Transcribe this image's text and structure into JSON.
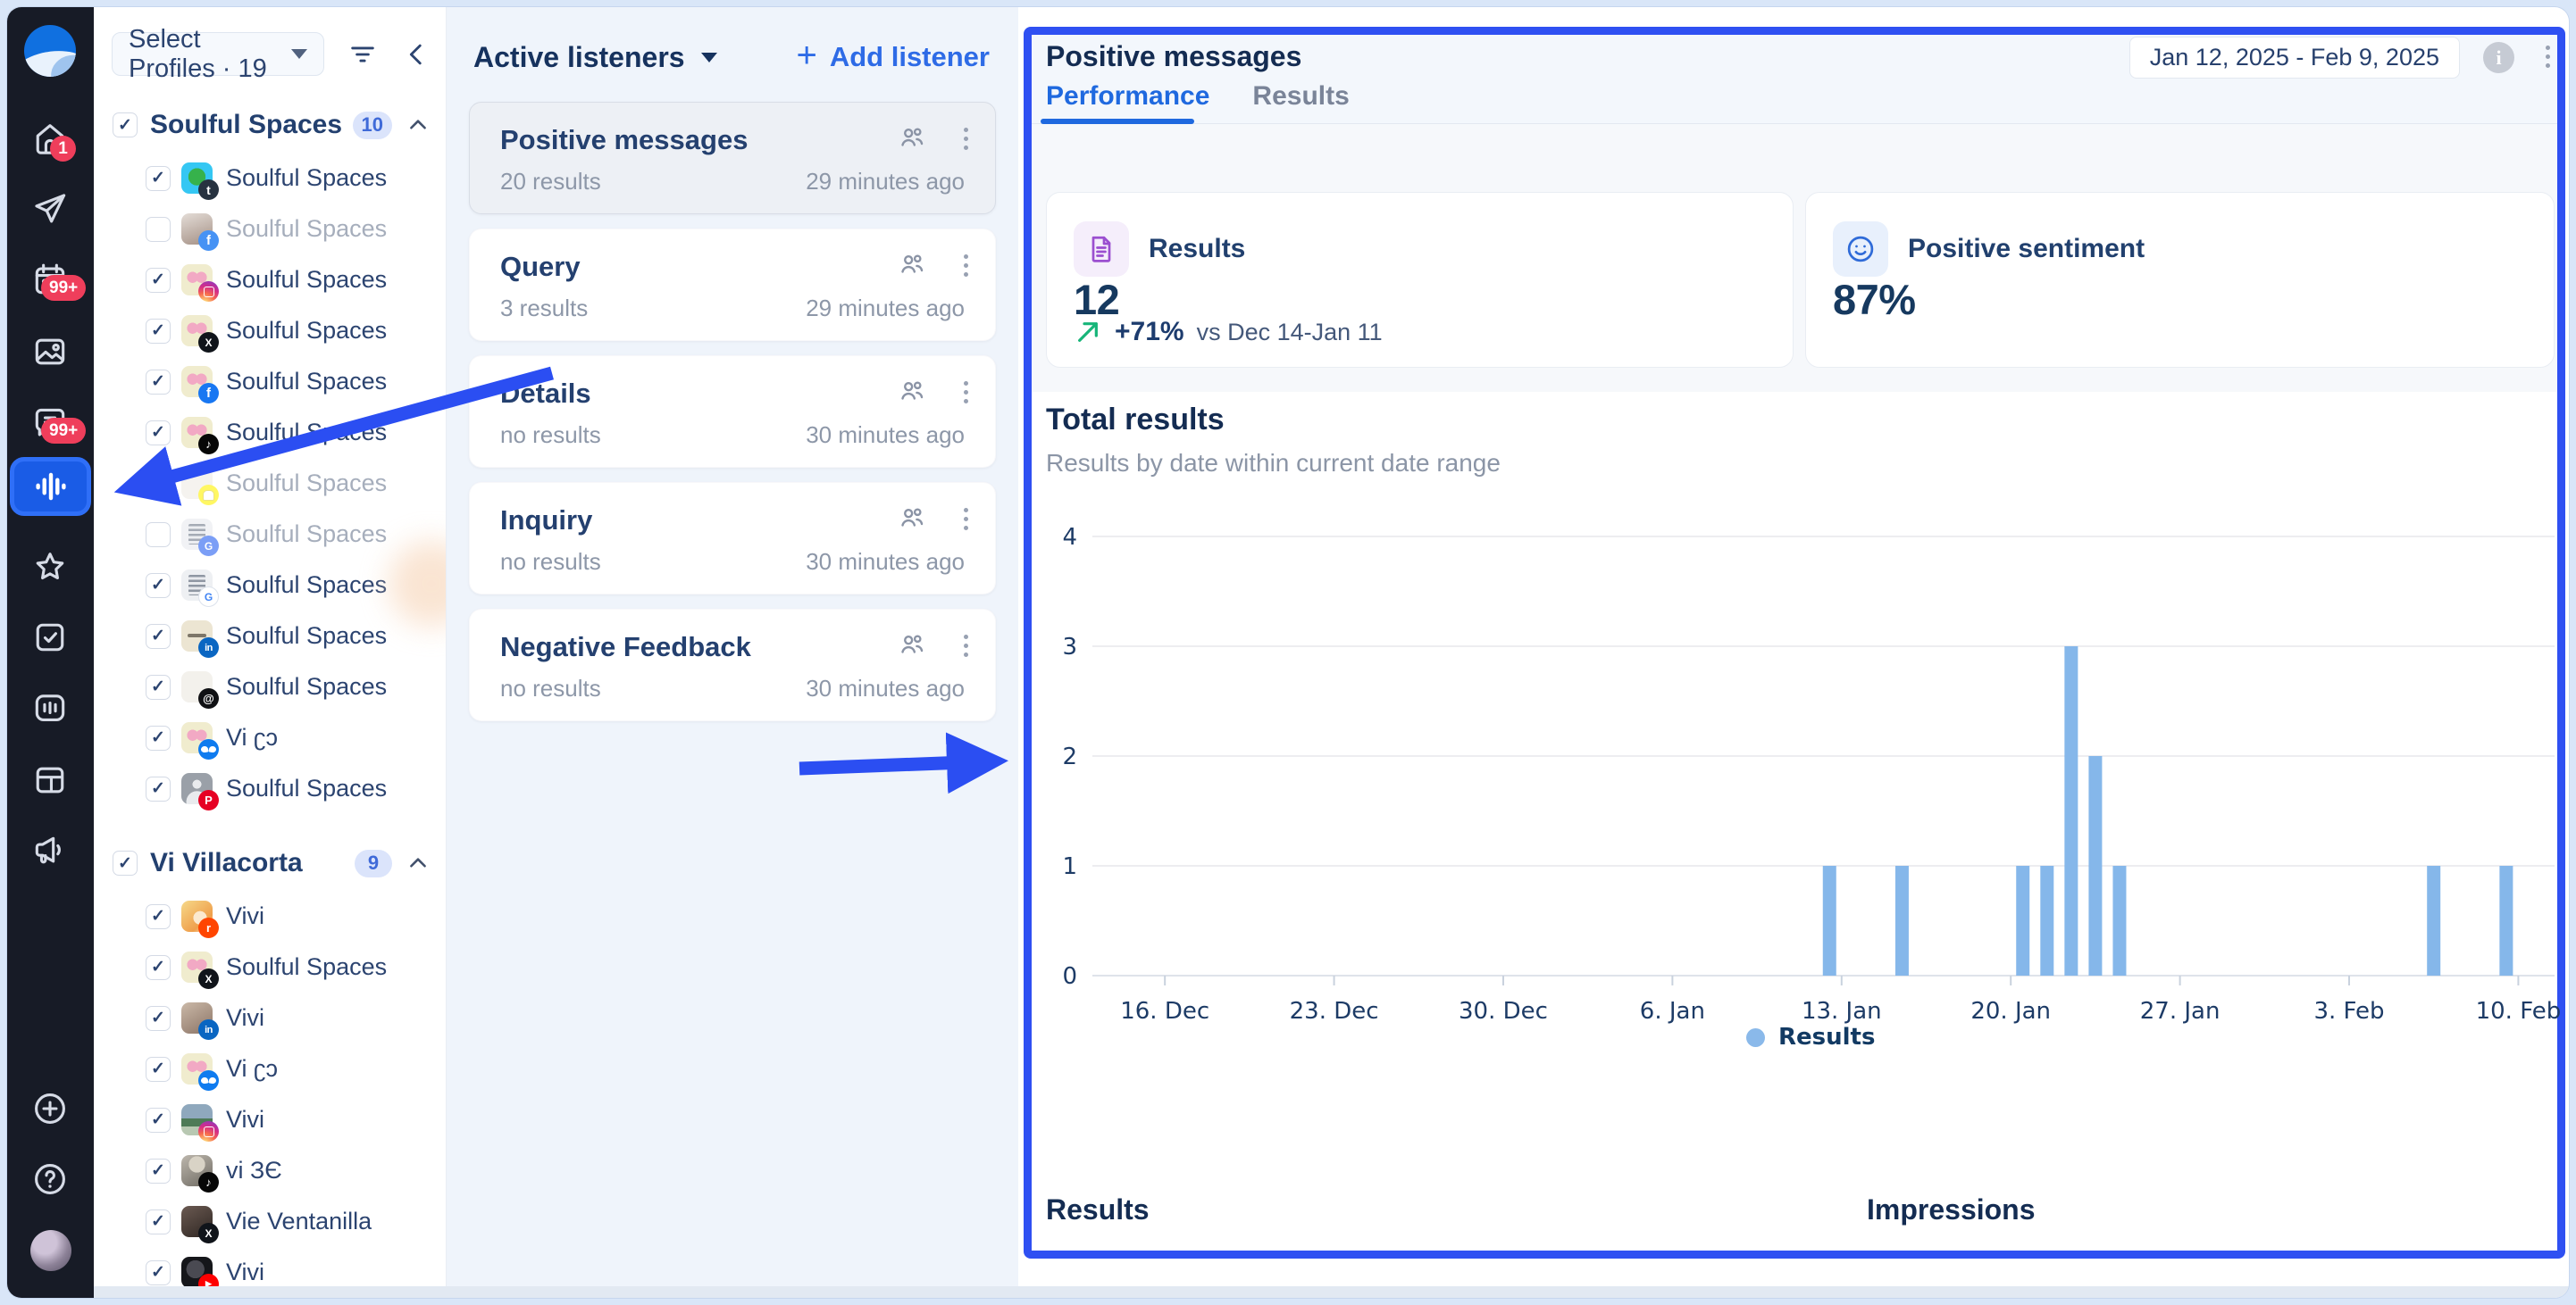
{
  "sidebar": {
    "badges": {
      "notifications": "1",
      "calendar": "99+",
      "inbox": "99+"
    },
    "items": [
      "home",
      "publish",
      "calendar",
      "media",
      "inbox",
      "listening",
      "reviews",
      "tasks",
      "reports",
      "boards",
      "advocacy"
    ],
    "active_item": "listening",
    "footer": [
      "add",
      "help",
      "profile-avatar"
    ]
  },
  "profiles_panel": {
    "selector_label": "Select Profiles · 19",
    "groups": [
      {
        "label": "Soulful Spaces",
        "count": "10",
        "items": [
          {
            "name": "Soulful Spaces",
            "platform": "tumblr",
            "checked": true,
            "avatar": "cyan"
          },
          {
            "name": "Soulful Spaces",
            "platform": "facebook",
            "checked": false,
            "avatar": "photo-woman"
          },
          {
            "name": "Soulful Spaces",
            "platform": "instagram",
            "checked": true,
            "avatar": "butterfly"
          },
          {
            "name": "Soulful Spaces",
            "platform": "x",
            "checked": true,
            "avatar": "butterfly"
          },
          {
            "name": "Soulful Spaces",
            "platform": "facebook",
            "checked": true,
            "avatar": "butterfly"
          },
          {
            "name": "Soulful Spaces",
            "platform": "tiktok",
            "checked": true,
            "avatar": "butterfly"
          },
          {
            "name": "Soulful Spaces",
            "platform": "snapchat",
            "checked": false,
            "avatar": "pale"
          },
          {
            "name": "Soulful Spaces",
            "platform": "google",
            "checked": false,
            "avatar": "building"
          },
          {
            "name": "Soulful Spaces",
            "platform": "google-business",
            "checked": true,
            "avatar": "building"
          },
          {
            "name": "Soulful Spaces",
            "platform": "linkedin",
            "checked": true,
            "avatar": "beige"
          },
          {
            "name": "Soulful Spaces",
            "platform": "threads",
            "checked": true,
            "avatar": "pale"
          },
          {
            "name": "Vi ʗɔ",
            "platform": "bluesky",
            "checked": true,
            "avatar": "butterfly"
          },
          {
            "name": "Soulful Spaces",
            "platform": "pinterest",
            "checked": true,
            "avatar": "gray-person"
          }
        ]
      },
      {
        "label": "Vi Villacorta",
        "count": "9",
        "items": [
          {
            "name": "Vivi",
            "platform": "reddit",
            "checked": true,
            "avatar": "anime"
          },
          {
            "name": "Soulful Spaces",
            "platform": "x",
            "checked": true,
            "avatar": "butterfly"
          },
          {
            "name": "Vivi",
            "platform": "linkedin",
            "checked": true,
            "avatar": "photo"
          },
          {
            "name": "Vi ʗɔ",
            "platform": "bluesky",
            "checked": true,
            "avatar": "butterfly"
          },
          {
            "name": "Vivi",
            "platform": "instagram",
            "checked": true,
            "avatar": "landscape"
          },
          {
            "name": "vi ЗЄ",
            "platform": "tiktok",
            "checked": true,
            "avatar": "cap"
          },
          {
            "name": "Vie Ventanilla",
            "platform": "x",
            "checked": true,
            "avatar": "photo-dark"
          },
          {
            "name": "Vivi",
            "platform": "youtube",
            "checked": true,
            "avatar": "dark"
          }
        ]
      }
    ]
  },
  "listeners_panel": {
    "title": "Active listeners",
    "add_label": "Add listener",
    "cards": [
      {
        "title": "Positive messages",
        "meta": "20 results",
        "time": "29 minutes ago",
        "selected": true
      },
      {
        "title": "Query",
        "meta": "3 results",
        "time": "29 minutes ago",
        "selected": false
      },
      {
        "title": "Details",
        "meta": "no results",
        "time": "30 minutes ago",
        "selected": false
      },
      {
        "title": "Inquiry",
        "meta": "no results",
        "time": "30 minutes ago",
        "selected": false
      },
      {
        "title": "Negative Feedback",
        "meta": "no results",
        "time": "30 minutes ago",
        "selected": false
      }
    ]
  },
  "detail_panel": {
    "title": "Positive messages",
    "tabs": [
      {
        "label": "Performance",
        "active": true
      },
      {
        "label": "Results",
        "active": false
      }
    ],
    "date_range": "Jan 12, 2025 - Feb 9, 2025",
    "metrics": [
      {
        "label": "Results",
        "value": "12",
        "trend": "+71%",
        "trend_note": "vs Dec 14-Jan 11",
        "icon": "document"
      },
      {
        "label": "Positive sentiment",
        "value": "87%",
        "icon": "smiley"
      }
    ],
    "section": {
      "title": "Total results",
      "subtitle": "Results by date within current date range"
    },
    "bottom_sections": [
      "Results",
      "Impressions"
    ]
  },
  "chart_data": {
    "type": "bar",
    "title": "Total results",
    "series_name": "Results",
    "x": [
      "Jan 12",
      "Jan 15",
      "Jan 20",
      "Jan 21",
      "Jan 22",
      "Jan 23",
      "Jan 24",
      "Feb 6",
      "Feb 9"
    ],
    "values": [
      1,
      1,
      1,
      1,
      3,
      2,
      1,
      1,
      1
    ],
    "xticks": [
      "16. Dec",
      "23. Dec",
      "30. Dec",
      "6. Jan",
      "13. Jan",
      "20. Jan",
      "27. Jan",
      "3. Feb",
      "10. Feb"
    ],
    "yticks": [
      0,
      1,
      2,
      3,
      4
    ],
    "ylim": [
      0,
      4
    ],
    "x_range": [
      "Dec 13",
      "Feb 11"
    ],
    "grid": true,
    "legend_position": "bottom",
    "bar_color": "#85b7ea"
  },
  "colors": {
    "accent_blue": "#2e6be6",
    "annotation_blue": "#2b4ef2",
    "navy_text": "#16325e",
    "bar_blue": "#85b7ea",
    "badge_red": "#ef3e5b",
    "sidebar_bg": "#171b26"
  }
}
